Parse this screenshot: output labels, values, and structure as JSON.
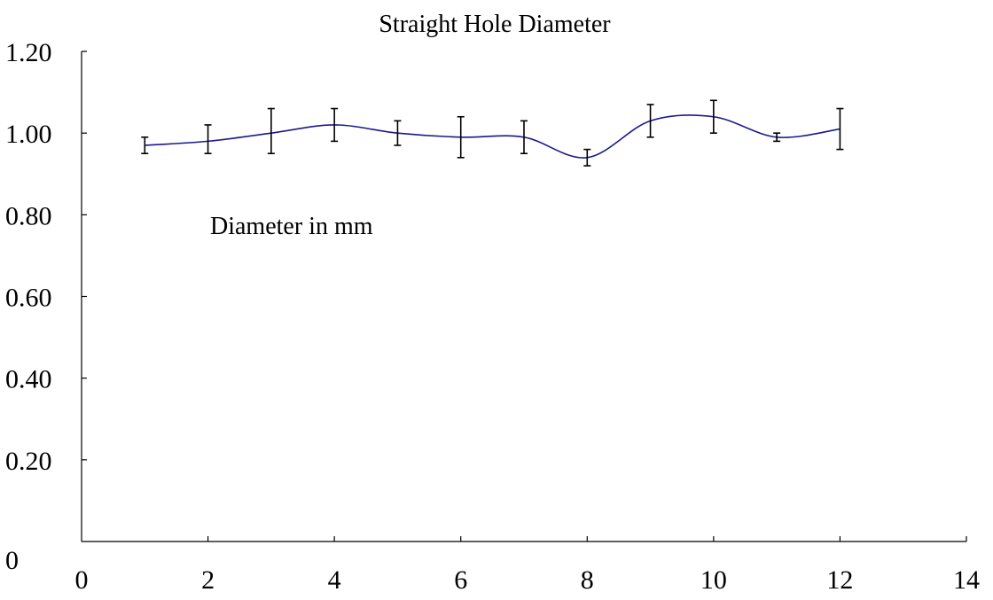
{
  "chart_data": {
    "type": "line",
    "title": "Straight Hole Diameter",
    "annotation": "Diameter in mm",
    "xlabel": "",
    "ylabel": "",
    "xlim": [
      0,
      14
    ],
    "ylim": [
      0,
      1.2
    ],
    "x_ticks": [
      "0",
      "2",
      "4",
      "6",
      "8",
      "10",
      "12",
      "14"
    ],
    "y_ticks": [
      "0",
      "0.20",
      "0.40",
      "0.60",
      "0.80",
      "1.00",
      "1.20"
    ],
    "grid": false,
    "smooth": true,
    "line_color": "#1a1a8c",
    "series": [
      {
        "x": [
          1,
          2,
          3,
          4,
          5,
          6,
          7,
          8,
          9,
          10,
          11,
          12
        ],
        "values": [
          0.97,
          0.98,
          1.0,
          1.02,
          1.0,
          0.99,
          0.99,
          0.94,
          1.03,
          1.04,
          0.99,
          1.01
        ],
        "err_low": [
          0.95,
          0.95,
          0.95,
          0.98,
          0.97,
          0.94,
          0.95,
          0.92,
          0.99,
          1.0,
          0.98,
          0.96
        ],
        "err_high": [
          0.99,
          1.02,
          1.06,
          1.06,
          1.03,
          1.04,
          1.03,
          0.96,
          1.07,
          1.08,
          1.0,
          1.06
        ]
      }
    ]
  }
}
